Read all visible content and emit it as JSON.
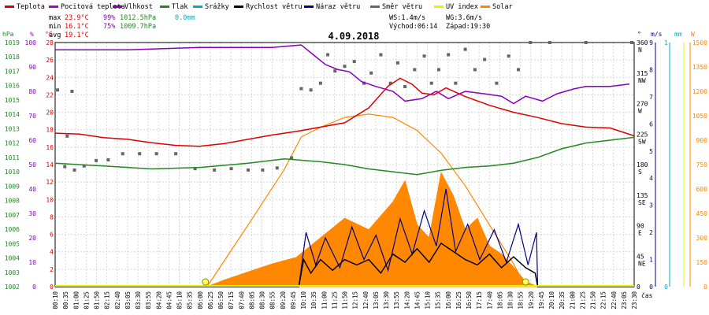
{
  "legend": [
    {
      "label": "Teplota",
      "color": "#dd0000"
    },
    {
      "label": "Pocitová teplota",
      "color": "#aa00cc"
    },
    {
      "label": "Vlhkost",
      "color": "#8800bb"
    },
    {
      "label": "Tlak",
      "color": "#228822"
    },
    {
      "label": "Srážky",
      "color": "#00aacc"
    },
    {
      "label": "Rychlost větru",
      "color": "#000000"
    },
    {
      "label": "Náraz větru",
      "color": "#000088"
    },
    {
      "label": "Směr větru",
      "color": "#666666"
    },
    {
      "label": "UV index",
      "color": "#eeee00"
    },
    {
      "label": "Solar",
      "color": "#ff8800"
    }
  ],
  "stats": {
    "max_label": "max",
    "max_temp": "23.9°C",
    "max_hum": "99%",
    "max_press": "1012.5hPa",
    "max_rain": "0.0mm",
    "min_label": "min",
    "min_temp": "16.1°C",
    "min_hum": "75%",
    "min_press": "1009.7hPa",
    "avg_label": "avg",
    "avg_temp": "19.1°C"
  },
  "wind_info": {
    "ws": "WS:1.4m/s",
    "wg": "WG:3.6m/s",
    "sunrise": "Východ:06:14",
    "sunset": "Západ:19:30"
  },
  "date": "4.09.2018",
  "axis_units": {
    "hpa": "hPa",
    "pct": "%",
    "degc": "°C",
    "dir": "°",
    "ms": "m/s",
    "mm": "mm",
    "w": "W"
  },
  "axis_ticks": {
    "hpa": [
      "1019",
      "1018",
      "1017",
      "1016",
      "1015",
      "1014",
      "1013",
      "1012",
      "1011",
      "1010",
      "1009",
      "1008",
      "1007",
      "1006",
      "1005",
      "1004",
      "1003",
      "1002"
    ],
    "pct": [
      "100",
      "90",
      "80",
      "70",
      "60",
      "50",
      "40",
      "30",
      "20",
      "10",
      "0"
    ],
    "degc": [
      "28",
      "26",
      "24",
      "22",
      "20",
      "18",
      "16",
      "14",
      "12",
      "10",
      "8",
      "6",
      "4",
      "2",
      "0"
    ],
    "dir": [
      {
        "v": "360",
        "l": "N"
      },
      {
        "v": "315",
        "l": "NW"
      },
      {
        "v": "270",
        "l": "W"
      },
      {
        "v": "225",
        "l": "SW"
      },
      {
        "v": "180",
        "l": "S"
      },
      {
        "v": "135",
        "l": "SE"
      },
      {
        "v": "90",
        "l": "E"
      },
      {
        "v": "45",
        "l": "NE"
      },
      {
        "v": "0",
        "l": ""
      }
    ],
    "ms": [
      "9",
      "8",
      "7",
      "6",
      "5",
      "4",
      "3",
      "2",
      "1",
      "0"
    ],
    "mm": [
      "1",
      "0"
    ],
    "w": [
      "1500",
      "1350",
      "1200",
      "1050",
      "900",
      "750",
      "600",
      "450",
      "300",
      "150",
      "0"
    ]
  },
  "x_ticks": [
    "00:10",
    "00:35",
    "01:00",
    "01:25",
    "01:50",
    "02:15",
    "02:40",
    "03:05",
    "03:30",
    "03:55",
    "04:20",
    "04:45",
    "05:10",
    "05:35",
    "06:00",
    "06:25",
    "06:50",
    "07:15",
    "07:40",
    "08:05",
    "08:30",
    "08:55",
    "09:20",
    "09:45",
    "10:10",
    "10:35",
    "11:00",
    "11:25",
    "11:50",
    "12:15",
    "12:40",
    "13:05",
    "13:30",
    "13:55",
    "14:20",
    "14:45",
    "15:10",
    "15:35",
    "16:00",
    "16:25",
    "16:50",
    "17:15",
    "17:40",
    "18:05",
    "18:30",
    "18:55",
    "19:20",
    "19:45",
    "20:10",
    "20:35",
    "21:00",
    "21:25",
    "21:50",
    "22:15",
    "22:40",
    "23:05",
    "23:30"
  ],
  "x_label": "čas",
  "chart_data": {
    "type": "line",
    "title": "4.09.2018",
    "x_range_hours": [
      0,
      24
    ],
    "series": [
      {
        "name": "Teplota",
        "unit": "°C",
        "color": "#dd0000",
        "points": [
          [
            0,
            17.6
          ],
          [
            1,
            17.5
          ],
          [
            2,
            17.1
          ],
          [
            3,
            16.9
          ],
          [
            4,
            16.5
          ],
          [
            5,
            16.2
          ],
          [
            6,
            16.1
          ],
          [
            7,
            16.4
          ],
          [
            8,
            16.9
          ],
          [
            9,
            17.4
          ],
          [
            10,
            17.8
          ],
          [
            11,
            18.3
          ],
          [
            12,
            18.8
          ],
          [
            13,
            20.5
          ],
          [
            13.8,
            23.0
          ],
          [
            14.3,
            23.9
          ],
          [
            14.8,
            23.2
          ],
          [
            15.2,
            22.2
          ],
          [
            15.7,
            22.0
          ],
          [
            16.2,
            22.8
          ],
          [
            17,
            21.8
          ],
          [
            18,
            20.8
          ],
          [
            19,
            20.0
          ],
          [
            20,
            19.4
          ],
          [
            21,
            18.7
          ],
          [
            22,
            18.3
          ],
          [
            23,
            18.2
          ],
          [
            24,
            17.3
          ]
        ]
      },
      {
        "name": "Vlhkost",
        "unit": "%",
        "color": "#8800bb",
        "points": [
          [
            0,
            97
          ],
          [
            3,
            97
          ],
          [
            6,
            98
          ],
          [
            9,
            98
          ],
          [
            10.2,
            99
          ],
          [
            10.7,
            95
          ],
          [
            11.2,
            91
          ],
          [
            11.7,
            89
          ],
          [
            12.2,
            88
          ],
          [
            12.7,
            84
          ],
          [
            13.3,
            82
          ],
          [
            14,
            80
          ],
          [
            14.5,
            76
          ],
          [
            15.2,
            77
          ],
          [
            15.8,
            80
          ],
          [
            16.3,
            77
          ],
          [
            17,
            80
          ],
          [
            17.8,
            79
          ],
          [
            18.5,
            78
          ],
          [
            19,
            75
          ],
          [
            19.5,
            78
          ],
          [
            20.2,
            76
          ],
          [
            20.8,
            79
          ],
          [
            21.5,
            81
          ],
          [
            22,
            82
          ],
          [
            23,
            82
          ],
          [
            23.8,
            83
          ]
        ]
      },
      {
        "name": "Tlak",
        "unit": "hPa",
        "color": "#228822",
        "points": [
          [
            0,
            1010.6
          ],
          [
            2,
            1010.4
          ],
          [
            4,
            1010.2
          ],
          [
            6,
            1010.3
          ],
          [
            8,
            1010.6
          ],
          [
            9.5,
            1010.9
          ],
          [
            11,
            1010.7
          ],
          [
            12,
            1010.5
          ],
          [
            13,
            1010.2
          ],
          [
            14,
            1010.0
          ],
          [
            15,
            1009.8
          ],
          [
            16,
            1010.1
          ],
          [
            17,
            1010.3
          ],
          [
            18,
            1010.4
          ],
          [
            19,
            1010.6
          ],
          [
            20,
            1011.0
          ],
          [
            21,
            1011.6
          ],
          [
            22,
            1012.0
          ],
          [
            23,
            1012.2
          ],
          [
            24,
            1012.4
          ]
        ]
      },
      {
        "name": "Rychlost větru",
        "unit": "m/s",
        "color": "#000000",
        "points": [
          [
            0,
            0
          ],
          [
            10.1,
            0
          ],
          [
            10.3,
            1
          ],
          [
            10.6,
            0.5
          ],
          [
            11,
            1
          ],
          [
            11.5,
            0.6
          ],
          [
            12,
            1
          ],
          [
            12.5,
            0.8
          ],
          [
            13,
            1
          ],
          [
            13.5,
            0.5
          ],
          [
            14,
            1.2
          ],
          [
            14.5,
            0.9
          ],
          [
            15,
            1.4
          ],
          [
            15.5,
            0.9
          ],
          [
            16,
            1.6
          ],
          [
            16.5,
            1.3
          ],
          [
            17,
            1
          ],
          [
            17.5,
            0.8
          ],
          [
            18,
            1.2
          ],
          [
            18.5,
            0.7
          ],
          [
            19,
            1.1
          ],
          [
            19.5,
            0.7
          ],
          [
            19.9,
            0.5
          ],
          [
            20,
            0
          ],
          [
            24,
            0
          ]
        ]
      },
      {
        "name": "Náraz větru",
        "unit": "m/s",
        "color": "#000088",
        "points": [
          [
            0,
            0
          ],
          [
            10.1,
            0
          ],
          [
            10.4,
            2
          ],
          [
            10.8,
            0.8
          ],
          [
            11.2,
            1.8
          ],
          [
            11.8,
            0.7
          ],
          [
            12.3,
            2.2
          ],
          [
            12.8,
            1
          ],
          [
            13.3,
            1.9
          ],
          [
            13.8,
            0.6
          ],
          [
            14.3,
            2.5
          ],
          [
            14.8,
            1.2
          ],
          [
            15.3,
            2.8
          ],
          [
            15.8,
            1.5
          ],
          [
            16.2,
            3.6
          ],
          [
            16.6,
            1.3
          ],
          [
            17.1,
            2.3
          ],
          [
            17.6,
            1
          ],
          [
            18.2,
            2.1
          ],
          [
            18.7,
            0.9
          ],
          [
            19.2,
            2.3
          ],
          [
            19.6,
            0.8
          ],
          [
            19.95,
            2.0
          ],
          [
            20,
            0
          ],
          [
            24,
            0
          ]
        ]
      },
      {
        "name": "Solar",
        "unit": "W",
        "color": "#ff8800",
        "points": [
          [
            6.3,
            0
          ],
          [
            7,
            40
          ],
          [
            8,
            90
          ],
          [
            9,
            140
          ],
          [
            10,
            180
          ],
          [
            11,
            300
          ],
          [
            12,
            420
          ],
          [
            13,
            350
          ],
          [
            14,
            520
          ],
          [
            14.5,
            650
          ],
          [
            15,
            380
          ],
          [
            15.5,
            300
          ],
          [
            16,
            700
          ],
          [
            16.5,
            560
          ],
          [
            17,
            350
          ],
          [
            17.5,
            420
          ],
          [
            18,
            250
          ],
          [
            18.5,
            200
          ],
          [
            19,
            120
          ],
          [
            19.5,
            30
          ],
          [
            20,
            0
          ]
        ]
      },
      {
        "name": "Solar max",
        "unit": "W",
        "color": "#ff8800",
        "points": [
          [
            6.3,
            0
          ],
          [
            8,
            380
          ],
          [
            9.5,
            720
          ],
          [
            10.2,
            920
          ],
          [
            11,
            980
          ],
          [
            12,
            1040
          ],
          [
            13,
            1060
          ],
          [
            14,
            1040
          ],
          [
            15,
            960
          ],
          [
            16,
            820
          ],
          [
            17,
            620
          ],
          [
            18,
            380
          ],
          [
            19,
            140
          ],
          [
            19.5,
            0
          ]
        ]
      },
      {
        "name": "Směr větru",
        "unit": "°",
        "color": "#666666",
        "points": [
          [
            0.1,
            290
          ],
          [
            0.7,
            288
          ],
          [
            0.5,
            222
          ],
          [
            0.4,
            177
          ],
          [
            0.8,
            172
          ],
          [
            1.2,
            178
          ],
          [
            1.7,
            186
          ],
          [
            2.2,
            187
          ],
          [
            2.8,
            196
          ],
          [
            3.5,
            196
          ],
          [
            4.2,
            196
          ],
          [
            5,
            196
          ],
          [
            5.8,
            174
          ],
          [
            6.6,
            172
          ],
          [
            7.3,
            174
          ],
          [
            8,
            172
          ],
          [
            8.6,
            172
          ],
          [
            9.2,
            175
          ],
          [
            9.8,
            190
          ],
          [
            10.2,
            292
          ],
          [
            10.6,
            290
          ],
          [
            11,
            300
          ],
          [
            11.3,
            342
          ],
          [
            11.6,
            318
          ],
          [
            12,
            325
          ],
          [
            12.4,
            332
          ],
          [
            12.8,
            300
          ],
          [
            13.1,
            315
          ],
          [
            13.5,
            342
          ],
          [
            13.9,
            300
          ],
          [
            14.2,
            330
          ],
          [
            14.5,
            295
          ],
          [
            14.9,
            320
          ],
          [
            15.3,
            340
          ],
          [
            15.6,
            300
          ],
          [
            15.9,
            320
          ],
          [
            16.3,
            342
          ],
          [
            16.6,
            300
          ],
          [
            17,
            350
          ],
          [
            17.4,
            320
          ],
          [
            17.8,
            335
          ],
          [
            18.3,
            300
          ],
          [
            18.8,
            340
          ],
          [
            19.2,
            320
          ],
          [
            19.7,
            360
          ],
          [
            20.5,
            360
          ],
          [
            22,
            360
          ],
          [
            23.9,
            360
          ]
        ]
      }
    ],
    "markers": [
      {
        "name": "sunrise",
        "x": 6.23
      },
      {
        "name": "sunset",
        "x": 19.5
      }
    ]
  }
}
